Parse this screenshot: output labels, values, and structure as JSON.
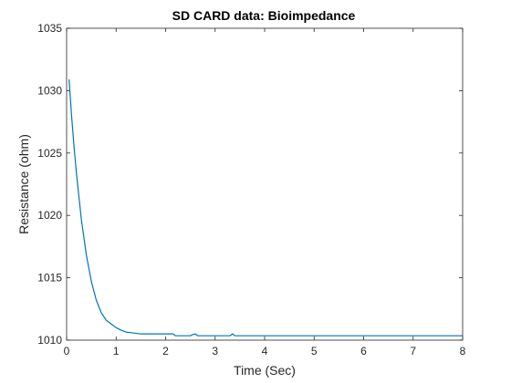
{
  "chart_data": {
    "type": "line",
    "title": "SD CARD data: Bioimpedance",
    "xlabel": "Time (Sec)",
    "ylabel": "Resistance (ohm)",
    "xlim": [
      0,
      8
    ],
    "ylim": [
      1010,
      1035
    ],
    "xticks": [
      0,
      1,
      2,
      3,
      4,
      5,
      6,
      7,
      8
    ],
    "yticks": [
      1010,
      1015,
      1020,
      1025,
      1030,
      1035
    ],
    "grid": false,
    "series": [
      {
        "color": "#0072BD",
        "x": [
          0.05,
          0.1,
          0.15,
          0.2,
          0.3,
          0.4,
          0.5,
          0.6,
          0.7,
          0.8,
          0.9,
          1.0,
          1.1,
          1.2,
          1.3,
          1.5,
          1.7,
          2.0,
          2.15,
          2.2,
          2.5,
          2.55,
          2.6,
          2.65,
          3.0,
          3.3,
          3.35,
          3.4,
          3.5,
          4.0,
          5.0,
          6.0,
          7.0,
          8.0
        ],
        "y": [
          1030.9,
          1028.0,
          1025.5,
          1023.3,
          1019.6,
          1016.8,
          1014.7,
          1013.2,
          1012.2,
          1011.6,
          1011.3,
          1011.0,
          1010.8,
          1010.65,
          1010.6,
          1010.5,
          1010.5,
          1010.5,
          1010.5,
          1010.35,
          1010.35,
          1010.45,
          1010.5,
          1010.35,
          1010.35,
          1010.35,
          1010.5,
          1010.35,
          1010.35,
          1010.35,
          1010.35,
          1010.35,
          1010.35,
          1010.35
        ]
      }
    ]
  }
}
